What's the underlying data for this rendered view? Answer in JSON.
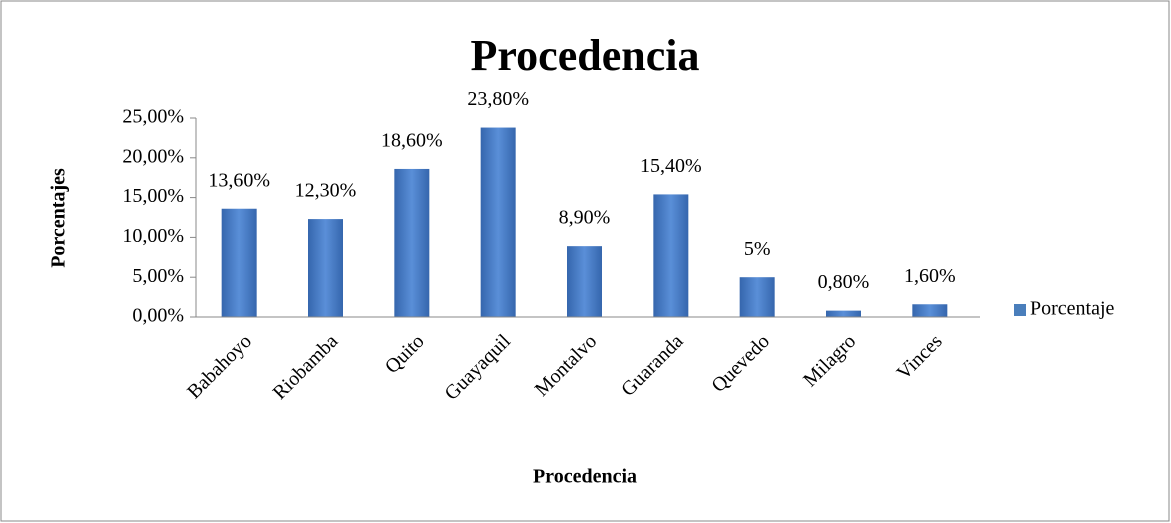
{
  "chart_data": {
    "type": "bar",
    "title": "Procedencia",
    "x_label": "Procedencia",
    "y_label": "Porcentajes",
    "categories": [
      "Babahoyo",
      "Riobamba",
      "Quito",
      "Guayaquil",
      "Montalvo",
      "Guaranda",
      "Quevedo",
      "Milagro",
      "Vinces"
    ],
    "series": [
      {
        "name": "Porcentaje",
        "color": "#4a7ebb",
        "values": [
          13.6,
          12.3,
          18.6,
          23.8,
          8.9,
          15.4,
          5,
          0.8,
          1.6
        ],
        "value_labels": [
          "13,60%",
          "12,30%",
          "18,60%",
          "23,80%",
          "8,90%",
          "15,40%",
          "5%",
          "0,80%",
          "1,60%"
        ]
      }
    ],
    "ylim": [
      0,
      25
    ],
    "yticks": [
      {
        "value": 0,
        "label": "0,00%"
      },
      {
        "value": 5,
        "label": "5,00%"
      },
      {
        "value": 10,
        "label": "10,00%"
      },
      {
        "value": 15,
        "label": "15,00%"
      },
      {
        "value": 20,
        "label": "20,00%"
      },
      {
        "value": 25,
        "label": "25,00%"
      }
    ],
    "legend": "right",
    "grid": false
  }
}
